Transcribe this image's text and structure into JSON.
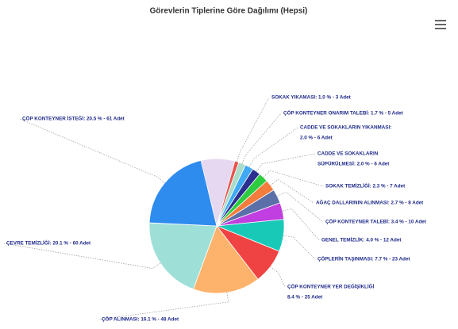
{
  "chart_data": {
    "type": "pie",
    "title": "Görevlerin Tiplerine Göre Dağılımı (Hepsi)",
    "labels": [
      [
        "SOKAK YIKAMASI: 1.0 % - 3 Adet"
      ],
      [
        "ÇÖP KONTEYNER ONARIM TALEBİ: 1.7 % - 5 Adet"
      ],
      [
        "CADDE VE SOKAKLARIN YIKANMASI:",
        "2.0 % - 6 Adet"
      ],
      [
        "CADDE VE SOKAKLARIN",
        "SÜPÜRÜLMESİ: 2.0 % - 6 Adet"
      ],
      [
        "SOKAK TEMİZLİĞİ: 2.3 % - 7 Adet"
      ],
      [
        "AĞAÇ DALLARININ ALINMASI: 2.7 % - 8 Adet"
      ],
      [
        "ÇÖP KONTEYNER TALEBİ: 3.4 % - 10 Adet"
      ],
      [
        "GENEL TEMİZLİK: 4.0 % - 12 Adet"
      ],
      [
        "ÇÖPLERİN TAŞINMASI: 7.7 % - 23 Adet"
      ],
      [
        "ÇÖP KONTEYNER YER DEĞİŞİKLİĞİ",
        "8.4 % - 25 Adet"
      ],
      [
        "ÇÖP ALINMASI: 16.1 % - 48 Adet"
      ],
      [
        "ÇEVRE TEMİZLİĞİ: 20.1 % - 60 Adet"
      ],
      [
        "ÇÖP KONTEYNER İSTEĞİ: 20.5 % - 61 Adet"
      ]
    ],
    "values": [
      1.0,
      1.7,
      2.0,
      2.0,
      2.3,
      2.7,
      3.4,
      4.0,
      7.7,
      8.4,
      16.1,
      20.1,
      20.5
    ],
    "colors": [
      "#e8554e",
      "#a9dcc9",
      "#3fa9f5",
      "#2b2f8f",
      "#2ecc40",
      "#f47c3c",
      "#5b6fa8",
      "#c13ee0",
      "#19c9b8",
      "#ef4343",
      "#fdb36b",
      "#9ee0d8",
      "#2f8cef"
    ]
  }
}
